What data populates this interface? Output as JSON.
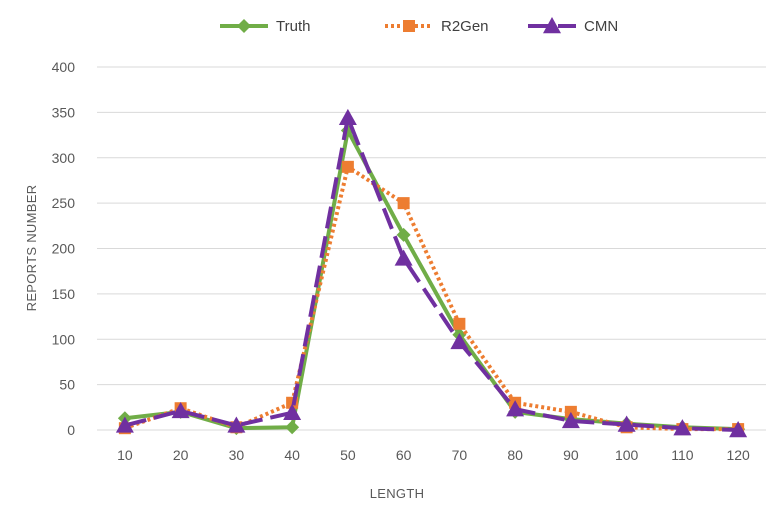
{
  "chart_data": {
    "type": "line",
    "title": "",
    "xlabel": "LENGTH",
    "ylabel": "REPORTS NUMBER",
    "ylim": [
      0,
      400
    ],
    "yticks": [
      0,
      50,
      100,
      150,
      200,
      250,
      300,
      350,
      400
    ],
    "categories": [
      "10",
      "20",
      "30",
      "40",
      "50",
      "60",
      "70",
      "80",
      "90",
      "100",
      "110",
      "120"
    ],
    "grid": true,
    "legend_position": "top",
    "series": [
      {
        "name": "Truth",
        "color": "#70ad47",
        "marker": "diamond",
        "dash": "solid",
        "values": [
          13,
          20,
          2,
          3,
          330,
          215,
          105,
          20,
          12,
          7,
          3,
          1
        ]
      },
      {
        "name": "R2Gen",
        "color": "#ed7d31",
        "marker": "square",
        "dash": "dotted",
        "values": [
          2,
          24,
          3,
          30,
          290,
          250,
          117,
          30,
          20,
          3,
          1,
          1
        ]
      },
      {
        "name": "CMN",
        "color": "#7030a0",
        "marker": "triangle",
        "dash": "dashed",
        "values": [
          5,
          21,
          5,
          19,
          344,
          189,
          97,
          23,
          10,
          6,
          2,
          0
        ]
      }
    ]
  }
}
